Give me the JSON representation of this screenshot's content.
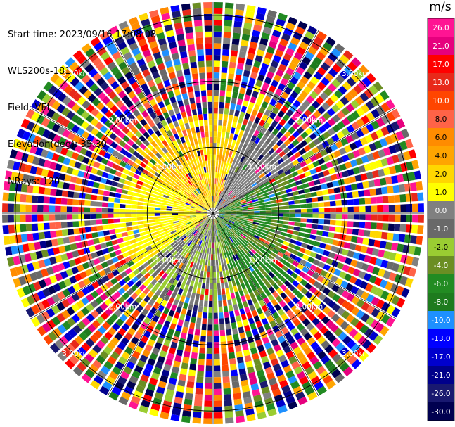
{
  "meta": {
    "start_time": "Start time: 2023/09/16 17:08:08",
    "instrument": "WLS200s-181",
    "field": "Field: VEL",
    "elevation": "Elevation(deg): 35.30",
    "nrays": "NRays: 120"
  },
  "chart_data": {
    "type": "heatmap",
    "projection": "polar-ppi",
    "field": "VEL",
    "units": "m/s",
    "rays": 120,
    "range_rings_km": [
      1.0,
      2.0,
      3.0
    ],
    "max_range_km": 3.2,
    "ring_labels": [
      "1.00km",
      "2.00km",
      "3.00km"
    ],
    "spokes_deg": [
      0,
      30,
      60,
      90,
      120,
      150,
      180,
      210,
      240,
      270,
      300,
      330
    ],
    "colorbar": {
      "ticks": [
        "26.0",
        "21.0",
        "17.0",
        "13.0",
        "10.0",
        "8.0",
        "6.0",
        "4.0",
        "2.0",
        "1.0",
        "0.0",
        "-1.0",
        "-2.0",
        "-4.0",
        "-6.0",
        "-8.0",
        "-10.0",
        "-13.0",
        "-17.0",
        "-21.0",
        "-26.0",
        "-30.0"
      ],
      "colors": [
        "#ff1493",
        "#e6007e",
        "#ff0000",
        "#e8291a",
        "#ff4500",
        "#ff6347",
        "#ff8c00",
        "#ffa500",
        "#ffd700",
        "#ffff00",
        "#808080",
        "#696969",
        "#9acd32",
        "#6b8e23",
        "#228b22",
        "#1e7b1e",
        "#1e90ff",
        "#0000ff",
        "#0000cd",
        "#00008b",
        "#191970",
        "#000050"
      ]
    }
  }
}
